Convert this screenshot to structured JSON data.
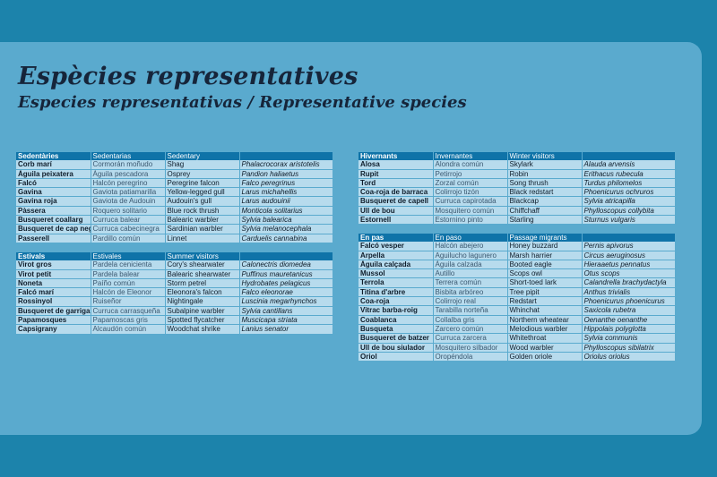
{
  "title": "Espècies representatives",
  "subtitle": "Especies representativas / Representative species",
  "tables": {
    "sedentaries": {
      "headers": [
        "Sedentàries",
        "Sedentarias",
        "Sedentary",
        ""
      ],
      "rows": [
        [
          "Corb marí",
          "Cormorán moñudo",
          "Shag",
          "Phalacrocorax aristotelis"
        ],
        [
          "Àguila peixatera",
          "Águila pescadora",
          "Osprey",
          "Pandion haliaetus"
        ],
        [
          "Falcó",
          "Halcón peregrino",
          "Peregrine falcon",
          "Falco peregrinus"
        ],
        [
          "Gavina",
          "Gaviota patiamarilla",
          "Yellow-legged gull",
          "Larus michahellis"
        ],
        [
          "Gavina roja",
          "Gaviota de Audouin",
          "Audouin's gull",
          "Larus audouinii"
        ],
        [
          "Pàssera",
          "Roquero solitario",
          "Blue rock thrush",
          "Monticola solitarius"
        ],
        [
          "Busqueret coallarg",
          "Curruca balear",
          "Balearic warbler",
          "Sylvia balearica"
        ],
        [
          "Busqueret de cap negre",
          "Curruca cabecinegra",
          "Sardinian warbler",
          "Sylvia melanocephala"
        ],
        [
          "Passerell",
          "Pardillo común",
          "Linnet",
          "Carduelis cannabina"
        ]
      ]
    },
    "estivals": {
      "headers": [
        "Estivals",
        "Estivales",
        "Summer visitors",
        ""
      ],
      "rows": [
        [
          "Virot gros",
          "Pardela cenicienta",
          "Cory's shearwater",
          "Calonectris diomedea"
        ],
        [
          "Virot petit",
          "Pardela balear",
          "Balearic shearwater",
          "Puffinus mauretanicus"
        ],
        [
          "Noneta",
          "Paíño común",
          "Storm petrel",
          "Hydrobates pelagicus"
        ],
        [
          "Falcó marí",
          "Halcón de Eleonor",
          "Eleonora's falcon",
          "Falco eleonorae"
        ],
        [
          "Rossinyol",
          "Ruiseñor",
          "Nightingale",
          "Luscinia megarhynchos"
        ],
        [
          "Busqueret de garriga",
          "Curruca carrasqueña",
          "Subalpine warbler",
          "Sylvia cantillans"
        ],
        [
          "Papamosques",
          "Papamoscas gris",
          "Spotted flycatcher",
          "Muscicapa striata"
        ],
        [
          "Capsigrany",
          "Alcaudón común",
          "Woodchat shrike",
          "Lanius senator"
        ]
      ]
    },
    "hivernants": {
      "headers": [
        "Hivernants",
        "Invernantes",
        "Winter visitors",
        ""
      ],
      "rows": [
        [
          "Alosa",
          "Alondra común",
          "Skylark",
          "Alauda arvensis"
        ],
        [
          "Rupit",
          "Petirrojo",
          "Robin",
          "Erithacus rubecula"
        ],
        [
          "Tord",
          "Zorzal común",
          "Song thrush",
          "Turdus philomelos"
        ],
        [
          "Coa-roja de barraca",
          "Colirrojo tizón",
          "Black redstart",
          "Phoenicurus ochruros"
        ],
        [
          "Busqueret de capell",
          "Curruca capirotada",
          "Blackcap",
          "Sylvia atricapilla"
        ],
        [
          "Ull de bou",
          "Mosquitero común",
          "Chiffchaff",
          "Phylloscopus collybita"
        ],
        [
          "Estornell",
          "Estornino pinto",
          "Starling",
          "Sturnus vulgaris"
        ]
      ]
    },
    "en_pas": {
      "headers": [
        "En pas",
        "En paso",
        "Passage migrants",
        ""
      ],
      "rows": [
        [
          "Falcó vesper",
          "Halcón abejero",
          "Honey buzzard",
          "Pernis apivorus"
        ],
        [
          "Arpella",
          "Aguilucho lagunero",
          "Marsh harrier",
          "Circus aeruginosus"
        ],
        [
          "Àguila calçada",
          "Águila calzada",
          "Booted eagle",
          "Hieraaetus pennatus"
        ],
        [
          "Mussol",
          "Autillo",
          "Scops owl",
          "Otus scops"
        ],
        [
          "Terrola",
          "Terrera común",
          "Short-toed lark",
          "Calandrella brachydactyla"
        ],
        [
          "Titina d'arbre",
          "Bisbita arbóreo",
          "Tree pipit",
          "Anthus trivialis"
        ],
        [
          "Coa-roja",
          "Colirrojo real",
          "Redstart",
          "Phoenicurus phoenicurus"
        ],
        [
          "Vitrac barba-roig",
          "Tarabilla norteña",
          "Whinchat",
          "Saxicola rubetra"
        ],
        [
          "Coablanca",
          "Collalba gris",
          "Northern wheatear",
          "Oenanthe oenanthe"
        ],
        [
          "Busqueta",
          "Zarcero común",
          "Melodious warbler",
          "Hippolais polyglotta"
        ],
        [
          "Busqueret de batzer",
          "Curruca zarcera",
          "Whitethroat",
          "Sylvia communis"
        ],
        [
          "Ull de bou siulador",
          "Mosquitero silbador",
          "Wood warbler",
          "Phylloscopus sibilatrix"
        ],
        [
          "Oriol",
          "Oropéndola",
          "Golden oriole",
          "Oriolus oriolus"
        ]
      ]
    }
  }
}
